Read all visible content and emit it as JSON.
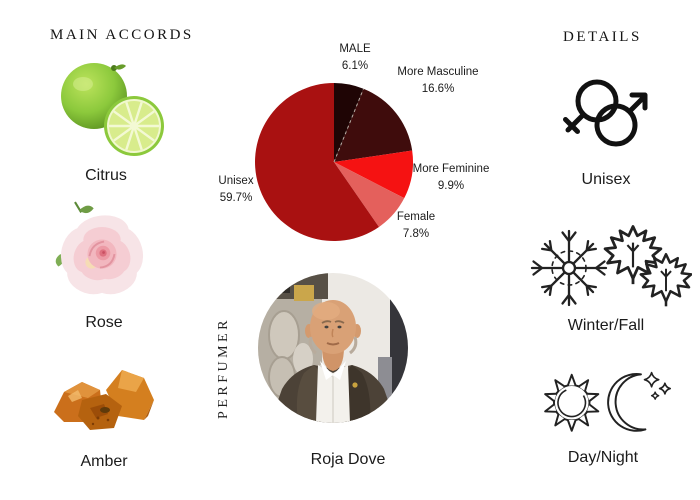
{
  "page": {
    "background": "#ffffff"
  },
  "main_accords": {
    "heading": "MAIN ACCORDS",
    "items": [
      {
        "label": "Citrus",
        "icon": "lime-image"
      },
      {
        "label": "Rose",
        "icon": "rose-image"
      },
      {
        "label": "Amber",
        "icon": "amber-image"
      }
    ]
  },
  "chart_data": {
    "type": "pie",
    "start_angle_deg": -90,
    "direction": "clockwise",
    "legend_position": "outside-labels",
    "slices": [
      {
        "label": "MALE",
        "pct": "6.1%",
        "value": 6.1,
        "color": "#1f0505"
      },
      {
        "label": "More Masculine",
        "pct": "16.6%",
        "value": 16.6,
        "color": "#3f0c0c"
      },
      {
        "label": "More Feminine",
        "pct": "9.9%",
        "value": 9.9,
        "color": "#f51212"
      },
      {
        "label": "Female",
        "pct": "7.8%",
        "value": 7.8,
        "color": "#e4605c"
      },
      {
        "label": "Unisex",
        "pct": "59.7%",
        "value": 59.7,
        "color": "#a91111"
      }
    ]
  },
  "perfumer": {
    "heading": "PERFUMER",
    "name": "Roja Dove"
  },
  "details": {
    "heading": "DETAILS",
    "items": [
      {
        "label": "Unisex",
        "icons": [
          "unisex-gender-icon"
        ]
      },
      {
        "label": "Winter/Fall",
        "icons": [
          "snowflake-icon",
          "maple-leaf-icon",
          "maple-leaf-icon"
        ]
      },
      {
        "label": "Day/Night",
        "icons": [
          "sun-icon",
          "moon-stars-icon"
        ]
      }
    ]
  }
}
